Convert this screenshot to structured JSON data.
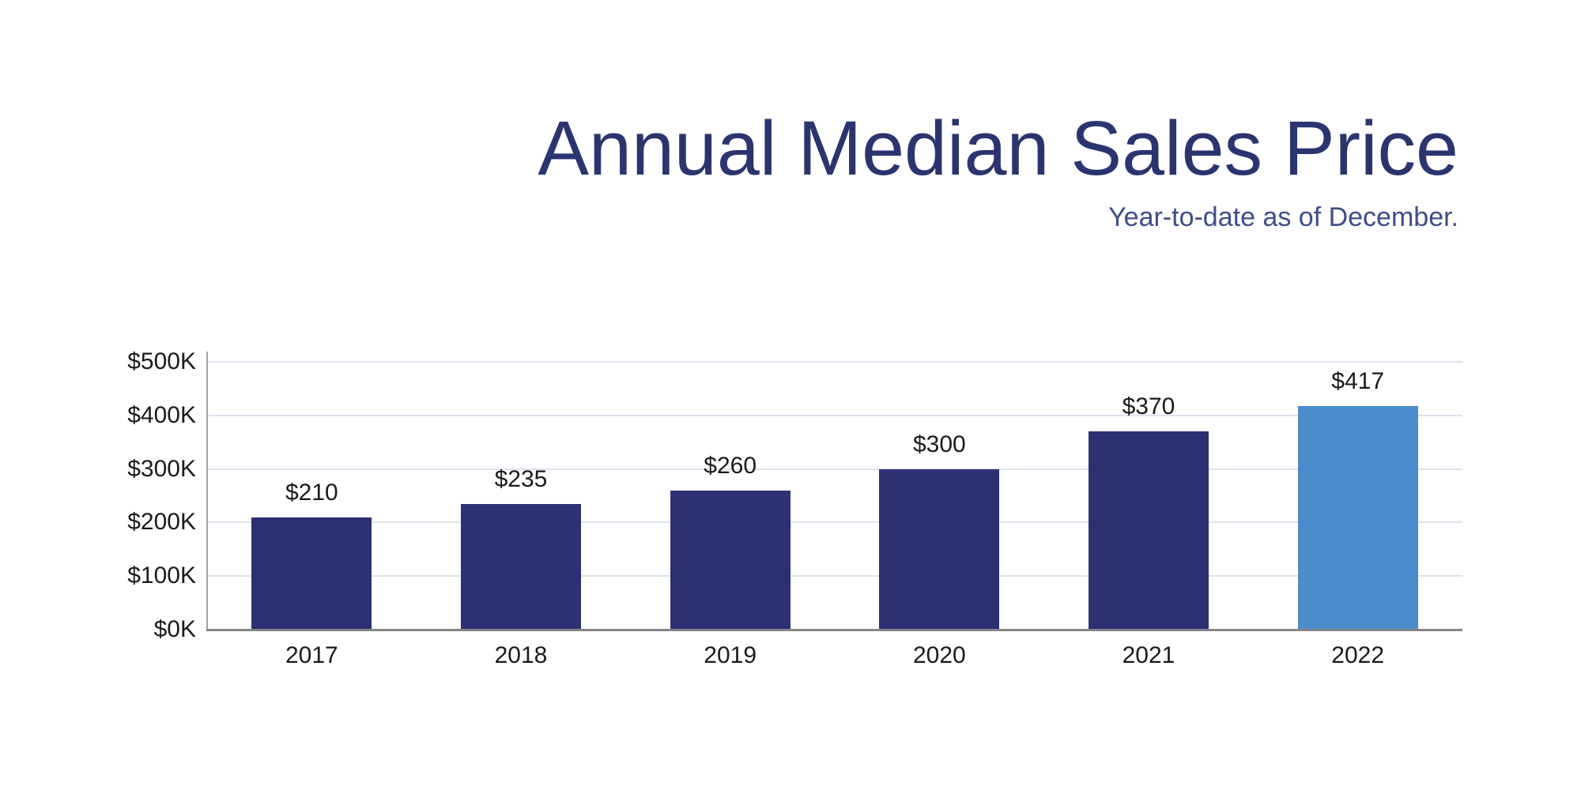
{
  "header": {
    "title": "Annual Median Sales Price",
    "subtitle": "Year-to-date as of December."
  },
  "chart_data": {
    "type": "bar",
    "title": "Annual Median Sales Price",
    "subtitle": "Year-to-date as of December.",
    "categories": [
      "2017",
      "2018",
      "2019",
      "2020",
      "2021",
      "2022"
    ],
    "values": [
      210,
      235,
      260,
      300,
      370,
      417
    ],
    "bar_labels": [
      "$210",
      "$235",
      "$260",
      "$300",
      "$370",
      "$417"
    ],
    "unit": "thousands of dollars",
    "y_tick_labels": [
      "$0K",
      "$100K",
      "$200K",
      "$300K",
      "$400K",
      "$500K"
    ],
    "y_tick_values": [
      0,
      100,
      200,
      300,
      400,
      500
    ],
    "ylim": [
      0,
      500
    ],
    "grid": true,
    "legend": false,
    "highlighted_category": "2022"
  },
  "colors": {
    "title_text": "#2a356f",
    "subtitle_text": "#3f4c88",
    "bar_default": "#2b3173",
    "bar_highlight": "#4b8ccb",
    "axis_label_text": "#1a1a1a",
    "gridline": "#dce4ee",
    "y_axis_line": "#a3a3a3",
    "x_axis_line": "#858585",
    "background": "#ffffff"
  }
}
